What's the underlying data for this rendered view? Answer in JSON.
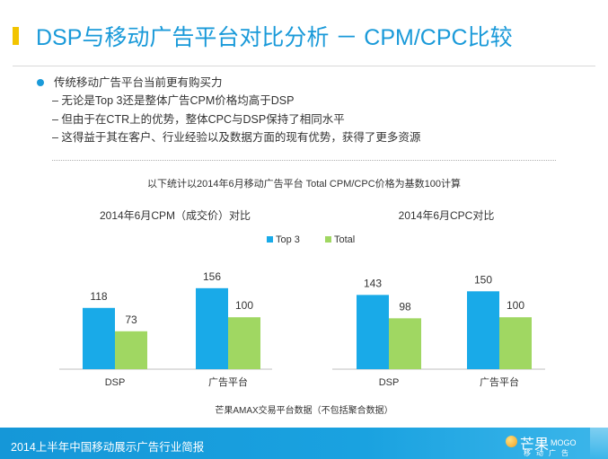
{
  "header": {
    "title": "DSP与移动广告平台对比分析 － CPM/CPC比较"
  },
  "bullets": {
    "main": "传统移动广告平台当前更有购买力",
    "subs": [
      "– 无论是Top 3还是整体广告CPM价格均高于DSP",
      "– 但由于在CTR上的优势，整体CPC与DSP保持了相同水平",
      "– 这得益于其在客户、行业经验以及数据方面的现有优势，获得了更多资源"
    ]
  },
  "note": "以下统计以2014年6月移动广告平台 Total CPM/CPC价格为基数100计算",
  "source": "芒果AMAX交易平台数据（不包括聚合数据）",
  "footer": {
    "text": "2014上半年中国移动展示广告行业简报",
    "logo_cn": "芒果",
    "logo_en": "MOGO",
    "logo_sub": "移动广告"
  },
  "colors": {
    "accent": "#1a9ad9",
    "top3": "#19aae8",
    "total": "#a0d762",
    "title_bar": "#f2c400"
  },
  "chart_data": [
    {
      "type": "bar",
      "title": "2014年6月CPM（成交价）对比",
      "categories": [
        "DSP",
        "广告平台"
      ],
      "series": [
        {
          "name": "Top 3",
          "values": [
            118,
            156
          ]
        },
        {
          "name": "Total",
          "values": [
            73,
            100
          ]
        }
      ],
      "legend": "top",
      "ylim": [
        0,
        170
      ],
      "grid": false
    },
    {
      "type": "bar",
      "title": "2014年6月CPC对比",
      "categories": [
        "DSP",
        "广告平台"
      ],
      "series": [
        {
          "name": "Top 3",
          "values": [
            143,
            150
          ]
        },
        {
          "name": "Total",
          "values": [
            98,
            100
          ]
        }
      ],
      "legend": "top",
      "ylim": [
        0,
        170
      ],
      "grid": false
    }
  ]
}
